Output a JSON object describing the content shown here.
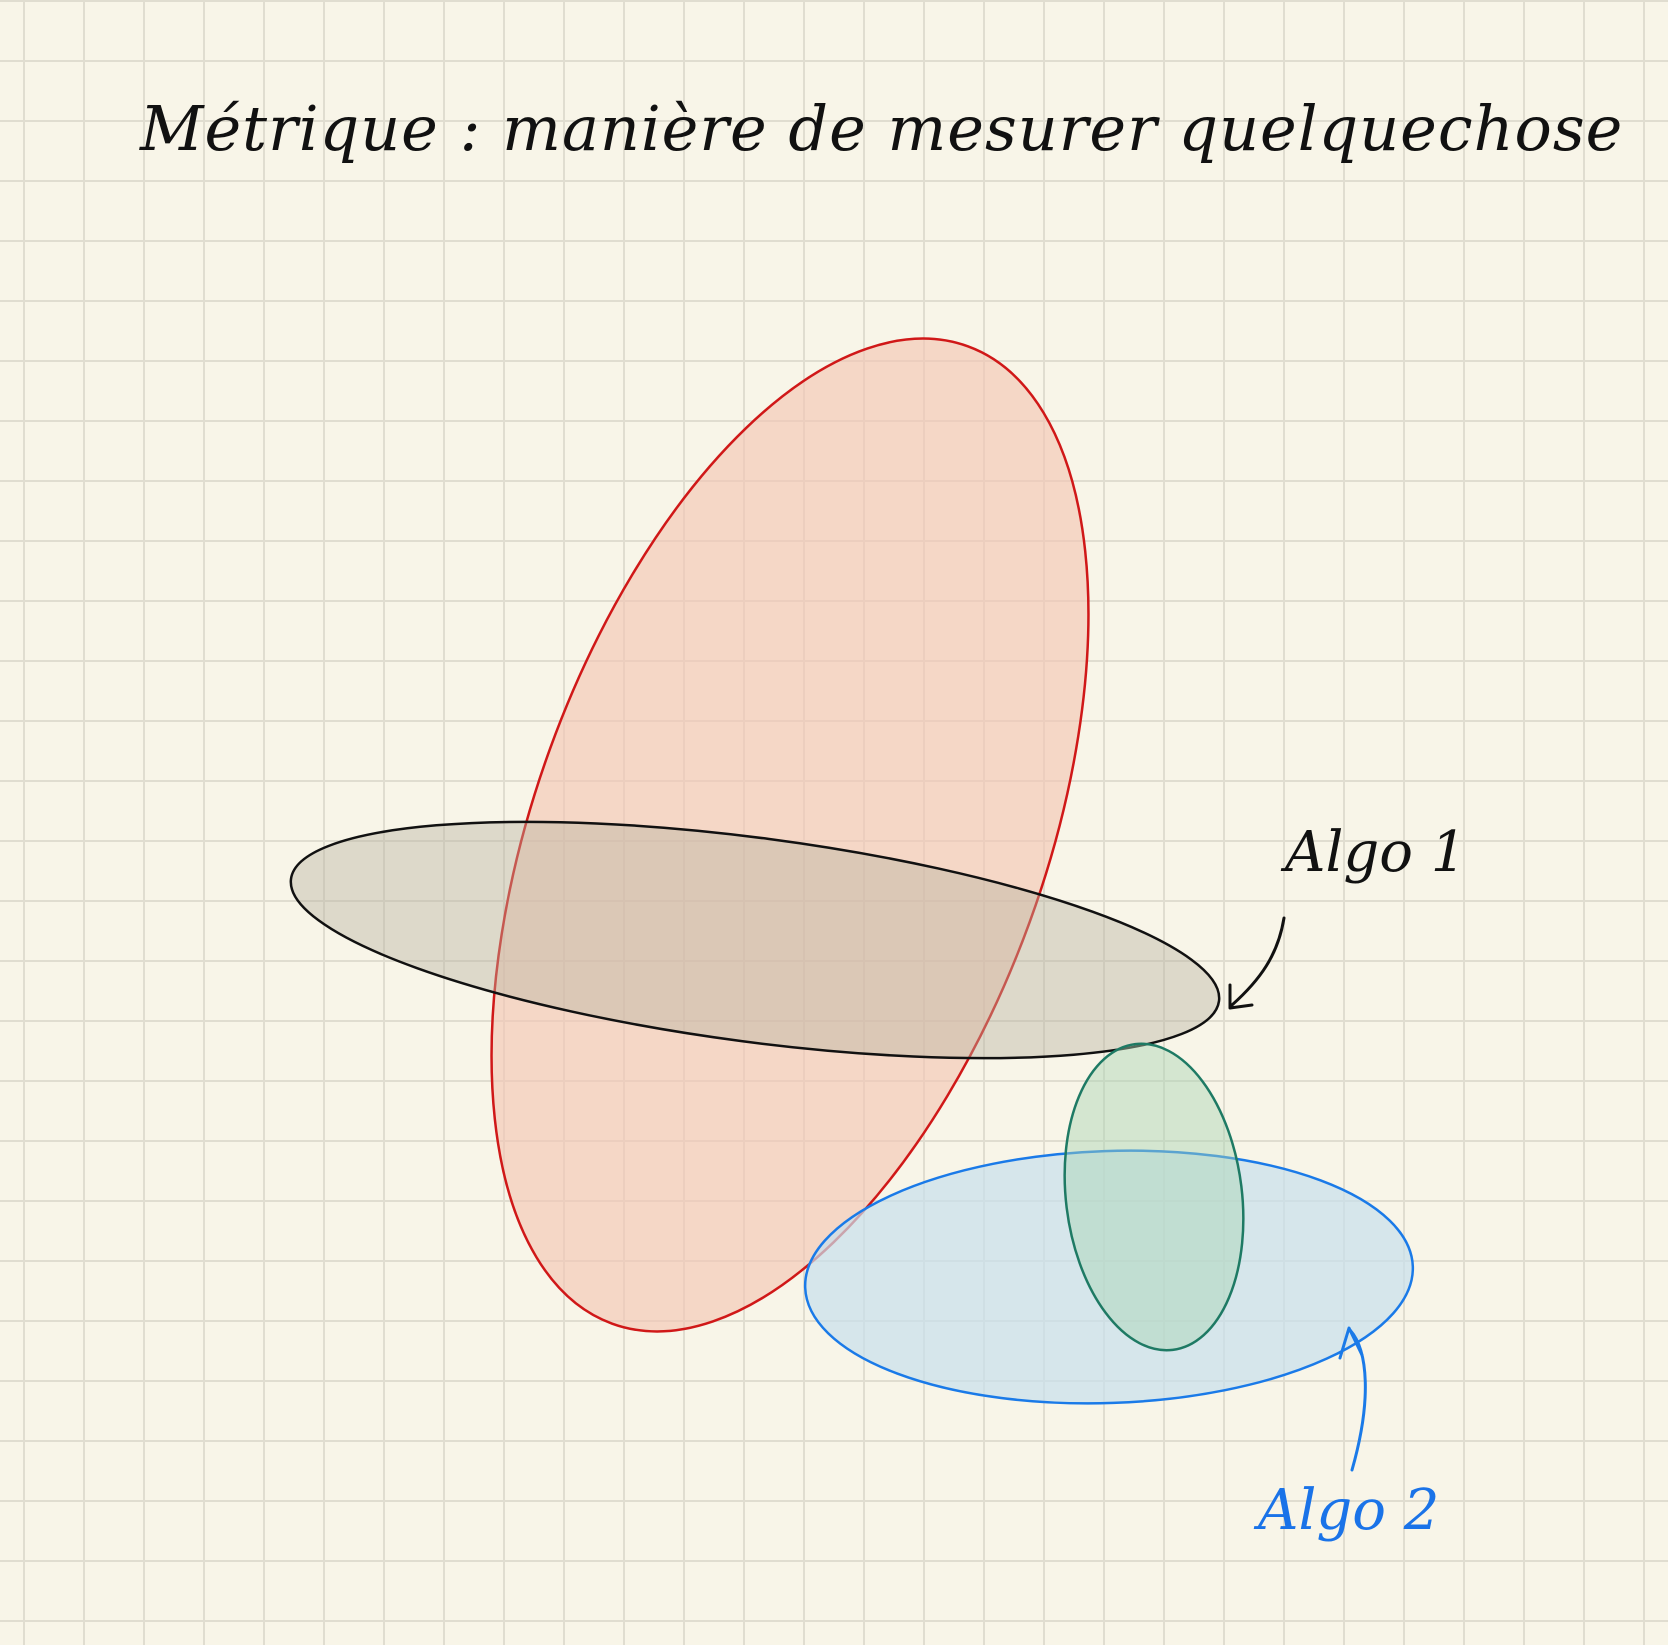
{
  "title": "Métrique : manière de mesurer quelquechose",
  "labels": {
    "algo1": "Algo 1",
    "algo2": "Algo 2"
  },
  "colors": {
    "paper": "#f8f5e8",
    "grid": "#e0ddd0",
    "ink": "#111111",
    "red_stroke": "#d01818",
    "red_fill": "#f2c6b4",
    "gray_stroke": "#111111",
    "gray_fill": "#c9c4b4",
    "green_stroke": "#1e7a64",
    "green_fill": "#bcdcc2",
    "blue_stroke": "#1a7ae8",
    "blue_fill": "#c8e0ec"
  }
}
